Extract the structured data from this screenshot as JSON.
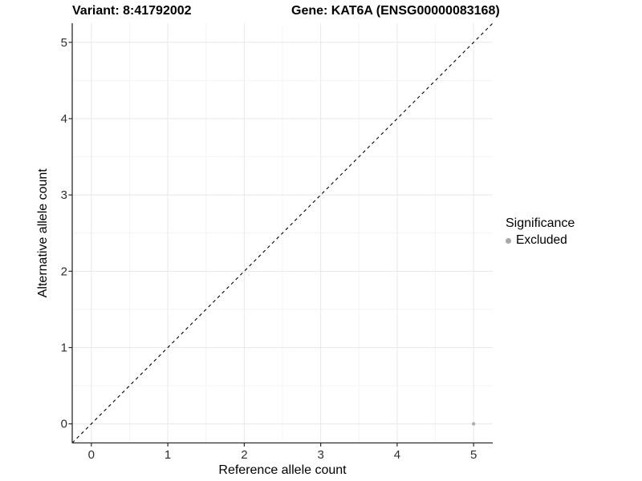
{
  "titles": {
    "variant": "Variant: 8:41792002",
    "gene": "Gene: KAT6A (ENSG00000083168)"
  },
  "legend": {
    "title": "Significance",
    "items": [
      {
        "label": "Excluded",
        "color": "#a8a8a8"
      }
    ]
  },
  "colors": {
    "point": "#b0b0b0",
    "grid_major": "#e8e8e8",
    "grid_minor": "#f4f4f4",
    "axis_line": "#2b2b2b",
    "tick_text": "#2e2e2e",
    "axis_title": "#000000",
    "reference_line": "#000000",
    "panel_background": "#ffffff"
  },
  "chart_data": {
    "type": "scatter",
    "title": "Variant: 8:41792002   Gene: KAT6A (ENSG00000083168)",
    "xlabel": "Reference allele count",
    "ylabel": "Alternative allele count",
    "xlim": [
      -0.25,
      5.25
    ],
    "ylim": [
      -0.25,
      5.25
    ],
    "xticks": [
      0,
      1,
      2,
      3,
      4,
      5
    ],
    "yticks": [
      0,
      1,
      2,
      3,
      4,
      5
    ],
    "xminor": [
      0.5,
      1.5,
      2.5,
      3.5,
      4.5
    ],
    "yminor": [
      0.5,
      1.5,
      2.5,
      3.5,
      4.5
    ],
    "grid": true,
    "legend_position": "right",
    "legend_title": "Significance",
    "series": [
      {
        "name": "Excluded",
        "color": "#b0b0b0",
        "points": [
          {
            "x": 5,
            "y": 0
          }
        ]
      }
    ],
    "reference_line": {
      "kind": "identity",
      "style": "dashed",
      "from": {
        "x": -0.25,
        "y": -0.25
      },
      "to": {
        "x": 5.25,
        "y": 5.25
      }
    }
  }
}
